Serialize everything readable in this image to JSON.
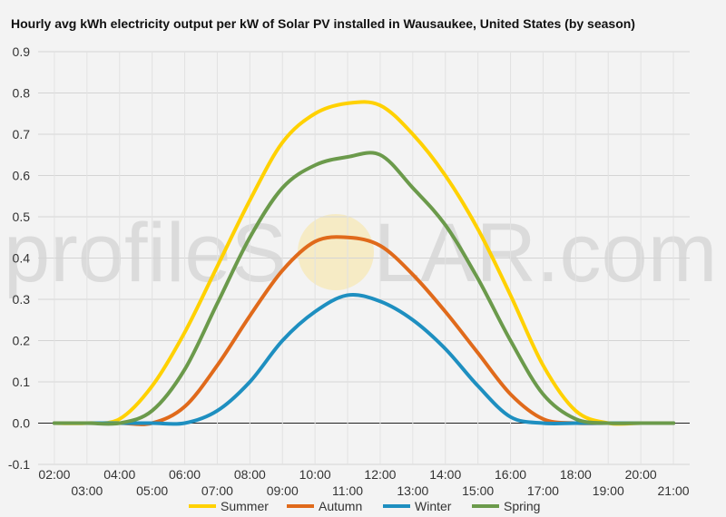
{
  "watermark": {
    "left": "profileS",
    "right": "LAR.com"
  },
  "chart_data": {
    "type": "line",
    "title": "Hourly avg kWh electricity output per kW of Solar PV installed in Wausaukee, United States (by season)",
    "x": [
      2,
      3,
      4,
      5,
      6,
      7,
      8,
      9,
      10,
      11,
      12,
      13,
      14,
      15,
      16,
      17,
      18,
      19,
      20,
      21
    ],
    "x_ticks": [
      "02:00",
      "03:00",
      "04:00",
      "05:00",
      "06:00",
      "07:00",
      "08:00",
      "09:00",
      "10:00",
      "11:00",
      "12:00",
      "13:00",
      "14:00",
      "15:00",
      "16:00",
      "17:00",
      "18:00",
      "19:00",
      "20:00",
      "21:00"
    ],
    "ylim": [
      -0.1,
      0.9
    ],
    "y_ticks": [
      -0.1,
      0.0,
      0.1,
      0.2,
      0.3,
      0.4,
      0.5,
      0.6,
      0.7,
      0.8,
      0.9
    ],
    "grid": true,
    "legend": "bottom",
    "series": [
      {
        "name": "Summer",
        "color": "#ffd100",
        "values": [
          0.0,
          0.0,
          0.01,
          0.09,
          0.22,
          0.38,
          0.54,
          0.68,
          0.75,
          0.775,
          0.77,
          0.7,
          0.6,
          0.47,
          0.31,
          0.14,
          0.03,
          0.0,
          0.0,
          0.0
        ]
      },
      {
        "name": "Autumn",
        "color": "#e06a1b",
        "values": [
          0.0,
          0.0,
          0.0,
          0.0,
          0.04,
          0.14,
          0.26,
          0.37,
          0.44,
          0.45,
          0.43,
          0.36,
          0.27,
          0.17,
          0.07,
          0.01,
          0.0,
          0.0,
          0.0,
          0.0
        ]
      },
      {
        "name": "Winter",
        "color": "#1e8fc0",
        "values": [
          0.0,
          0.0,
          0.0,
          0.0,
          0.0,
          0.03,
          0.1,
          0.2,
          0.27,
          0.31,
          0.295,
          0.25,
          0.18,
          0.09,
          0.015,
          0.0,
          0.0,
          0.0,
          0.0,
          0.0
        ]
      },
      {
        "name": "Spring",
        "color": "#6b9a4b",
        "values": [
          0.0,
          0.0,
          0.0,
          0.03,
          0.13,
          0.29,
          0.45,
          0.57,
          0.625,
          0.645,
          0.65,
          0.57,
          0.48,
          0.35,
          0.2,
          0.07,
          0.01,
          0.0,
          0.0,
          0.0
        ]
      }
    ]
  }
}
